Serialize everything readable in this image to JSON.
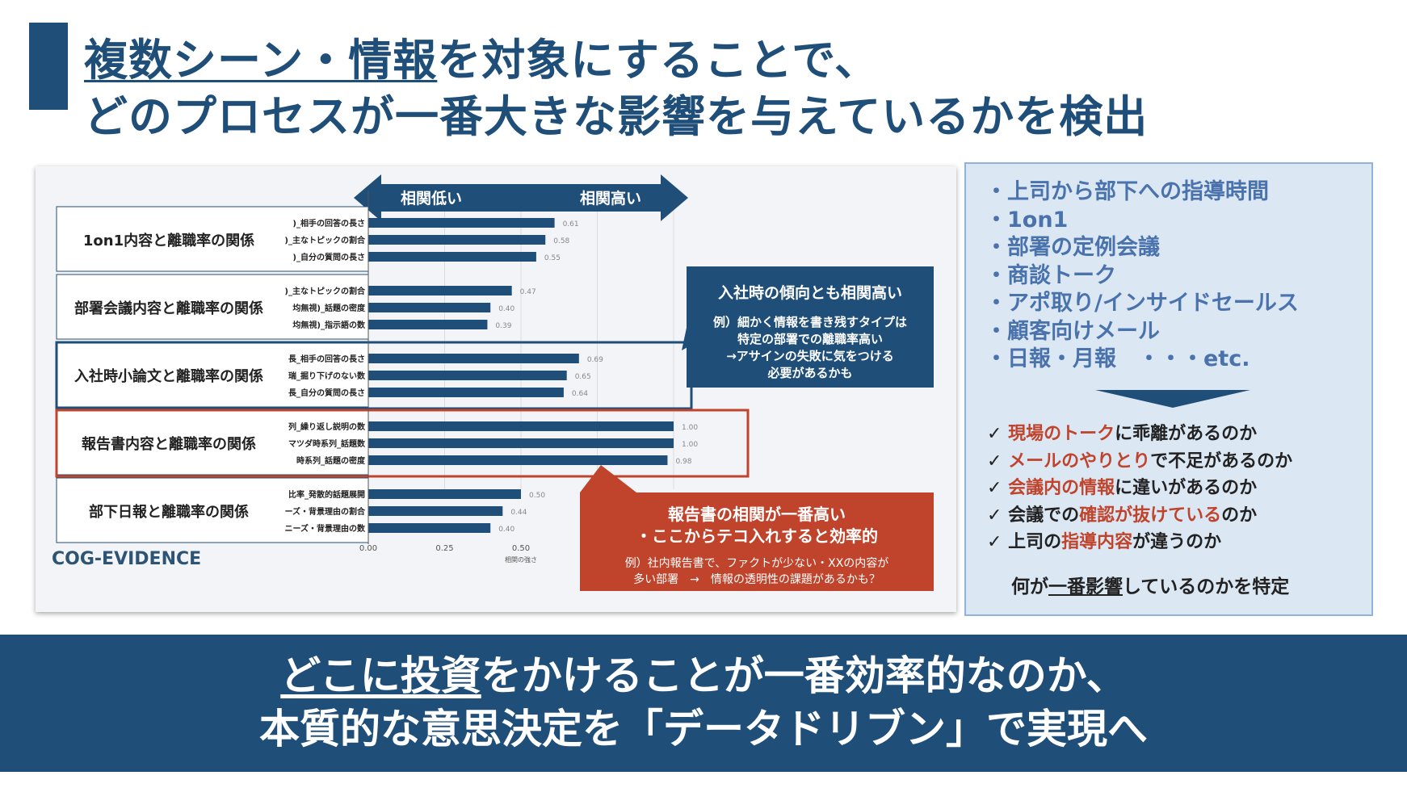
{
  "title": {
    "line1_underlined": "複数シーン・情報",
    "line1_rest": "を対象にすることで、",
    "line2": "どのプロセスが一番大きな影響を与えているかを検出"
  },
  "arrow": {
    "left_label": "相関低い",
    "right_label": "相関高い"
  },
  "chart_data": {
    "type": "bar",
    "orientation": "horizontal",
    "xlabel": "相関の強さ",
    "xlim": [
      0,
      1.0
    ],
    "xticks": [
      "0.00",
      "0.25",
      "0.50"
    ],
    "groups": [
      {
        "name": "1on1内容と離職率の関係",
        "bars": [
          {
            "label": ")_相手の回答の長さ",
            "value": 0.61
          },
          {
            "label": ")_主なトピックの割合",
            "value": 0.58
          },
          {
            "label": ")_自分の質問の長さ",
            "value": 0.55
          }
        ]
      },
      {
        "name": "部署会議内容と離職率の関係",
        "bars": [
          {
            "label": ")_主なトピックの割合",
            "value": 0.47
          },
          {
            "label": "均無視)_話題の密度",
            "value": 0.4
          },
          {
            "label": "均無視)_指示語の数",
            "value": 0.39
          }
        ]
      },
      {
        "name": "入社時小論文と離職率の関係",
        "bars": [
          {
            "label": "長_相手の回答の長さ",
            "value": 0.69
          },
          {
            "label": "瑞_掘り下げのない数",
            "value": 0.65
          },
          {
            "label": "長_自分の質問の長さ",
            "value": 0.64
          }
        ]
      },
      {
        "name": "報告書内容と離職率の関係",
        "bars": [
          {
            "label": "列_繰り返し説明の数",
            "value": 1.0
          },
          {
            "label": "マツダ時系列_話題数",
            "value": 1.0
          },
          {
            "label": "時系列_話題の密度",
            "value": 0.98
          }
        ]
      },
      {
        "name": "部下日報と離職率の関係",
        "bars": [
          {
            "label": "比率_発散的話題展開",
            "value": 0.5
          },
          {
            "label": "ーズ・背景理由の割合",
            "value": 0.44
          },
          {
            "label": "ニーズ・背景理由の数",
            "value": 0.4
          }
        ]
      }
    ]
  },
  "callout": {
    "heading": "入社時の傾向とも相関高い",
    "body_lines": [
      "例）細かく情報を書き残すタイプは",
      "特定の部署での離職率高い",
      "→アサインの失敗に気をつける",
      "必要があるかも"
    ]
  },
  "red_callout": {
    "heading1": "報告書の相関が一番高い",
    "heading2": "・ここからテコ入れすると効率的",
    "body_line1": "例）社内報告書で、ファクトが少ない・XXの内容が",
    "body_line2": "多い部署　→　情報の透明性の課題があるかも？"
  },
  "logo": "COG-EVIDENCE",
  "sources": [
    "・上司から部下への指導時間",
    "・1on1",
    "・部署の定例会議",
    "・商談トーク",
    "・アポ取り/インサイドセールス",
    "・顧客向けメール",
    "・日報・月報　・・・etc."
  ],
  "checks": [
    {
      "pre": "✓ ",
      "red": "現場のトーク",
      "post": "に乖離があるのか"
    },
    {
      "pre": "✓ ",
      "red": "メールのやりとり",
      "post": "で不足があるのか"
    },
    {
      "pre": "✓ ",
      "red": "会議内の情報",
      "post": "に違いがあるのか"
    },
    {
      "pre": "✓ 会議での",
      "red": "確認が抜けている",
      "post": "のか"
    },
    {
      "pre": "✓ 上司の",
      "red": "指導内容",
      "post": "が違うのか"
    }
  ],
  "conclusion": {
    "pre": "何が",
    "underlined": "一番影響",
    "post": "しているのかを特定"
  },
  "bottom": {
    "line1_underlined": "どこに投資",
    "line1_rest": "をかけることが一番効率的なのか、",
    "line2": "本質的な意思決定を「データドリブン」で実現へ"
  },
  "colors": {
    "navy": "#1f4e79",
    "red": "#c0442c",
    "light_blue": "#dce7f4"
  }
}
